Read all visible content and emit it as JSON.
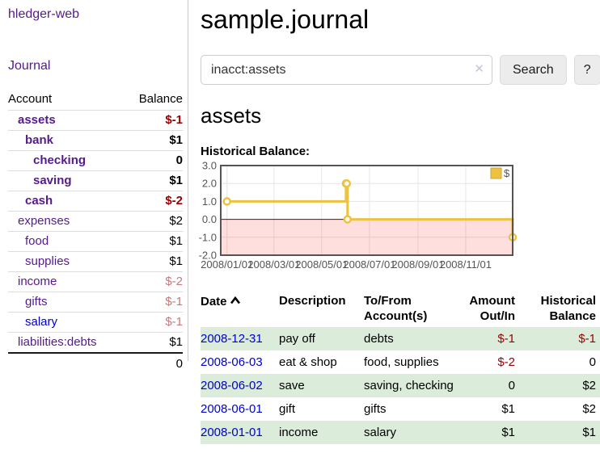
{
  "app": {
    "brand": "hledger-web",
    "nav": {
      "journal": "Journal"
    }
  },
  "sidebar": {
    "columns": {
      "account": "Account",
      "balance": "Balance"
    },
    "accounts": [
      {
        "name": "assets",
        "depth": 1,
        "bold": true,
        "balance": "$-1",
        "balance_style": "neg-strong"
      },
      {
        "name": "bank",
        "depth": 2,
        "bold": true,
        "balance": "$1",
        "balance_style": "plain"
      },
      {
        "name": "checking",
        "depth": 3,
        "bold": true,
        "balance": "0",
        "balance_style": "plain"
      },
      {
        "name": "saving",
        "depth": 3,
        "bold": true,
        "balance": "$1",
        "balance_style": "plain"
      },
      {
        "name": "cash",
        "depth": 2,
        "bold": true,
        "balance": "$-2",
        "balance_style": "neg-strong"
      },
      {
        "name": "expenses",
        "depth": 1,
        "bold": false,
        "balance": "$2",
        "balance_style": "plain"
      },
      {
        "name": "food",
        "depth": 2,
        "bold": false,
        "balance": "$1",
        "balance_style": "plain"
      },
      {
        "name": "supplies",
        "depth": 2,
        "bold": false,
        "balance": "$1",
        "balance_style": "plain"
      },
      {
        "name": "income",
        "depth": 1,
        "bold": false,
        "balance": "$-2",
        "balance_style": "neg-soft"
      },
      {
        "name": "gifts",
        "depth": 2,
        "bold": false,
        "balance": "$-1",
        "balance_style": "neg-soft"
      },
      {
        "name": "salary",
        "depth": 2,
        "bold": false,
        "balance": "$-1",
        "balance_style": "neg-soft",
        "link_style": "unvisited"
      },
      {
        "name": "liabilities:debts",
        "depth": 1,
        "bold": false,
        "balance": "$1",
        "balance_style": "plain",
        "last": true
      }
    ],
    "total": "0"
  },
  "main": {
    "title": "sample.journal",
    "search": {
      "value": "inacct:assets",
      "clear_icon": "✕",
      "submit_label": "Search",
      "help_label": "?"
    },
    "account_heading": "assets",
    "chart_title": "Historical Balance:"
  },
  "chart_data": {
    "type": "line",
    "step": true,
    "title": "Historical Balance",
    "series": [
      {
        "name": "$",
        "color": "#edc240",
        "points": [
          [
            "2008-01-01",
            1
          ],
          [
            "2008-06-01",
            2
          ],
          [
            "2008-06-02",
            2
          ],
          [
            "2008-06-03",
            0
          ],
          [
            "2008-12-31",
            -1
          ]
        ]
      }
    ],
    "x_ticks": [
      {
        "date": "2008-01-01",
        "label": "2008/01/01"
      },
      {
        "date": "2008-03-01",
        "label": "2008/03/01"
      },
      {
        "date": "2008-05-01",
        "label": "2008/05/01"
      },
      {
        "date": "2008-07-01",
        "label": "2008/07/01"
      },
      {
        "date": "2008-09-01",
        "label": "2008/09/01"
      },
      {
        "date": "2008-11-01",
        "label": "2008/11/01"
      }
    ],
    "y_ticks": [
      {
        "value": 3,
        "label": "3.0"
      },
      {
        "value": 2,
        "label": "2.0"
      },
      {
        "value": 1,
        "label": "1.0"
      },
      {
        "value": 0,
        "label": "0.0"
      },
      {
        "value": -1,
        "label": "-1.0"
      },
      {
        "value": -2,
        "label": "-2.0"
      }
    ],
    "ylim": [
      -2,
      3
    ],
    "x_domain_days": [
      -8,
      365
    ],
    "grid": true,
    "legend": {
      "label": "$",
      "position": "top-right"
    },
    "negative_region": {
      "from": 0,
      "to": -2,
      "fill": "rgba(255,0,0,0.13)",
      "zero_line_color": "#8b0000"
    },
    "colors": {
      "border": "#545454",
      "gridline": "#e6e6e6",
      "tick_text": "#545454",
      "legend_square_border": "#cda43a"
    }
  },
  "register": {
    "columns": [
      {
        "label": "Date",
        "sorted": "asc"
      },
      {
        "label": "Description"
      },
      {
        "label": "To/From Account(s)"
      },
      {
        "label": "Amount Out/In",
        "align": "right"
      },
      {
        "label": "Historical Balance",
        "align": "right"
      }
    ],
    "rows": [
      {
        "date": "2008-12-31",
        "description": "pay off",
        "accounts": "debts",
        "amount": "$-1",
        "amount_negative": true,
        "balance": "$-1",
        "balance_negative": true
      },
      {
        "date": "2008-06-03",
        "description": "eat & shop",
        "accounts": "food, supplies",
        "amount": "$-2",
        "amount_negative": true,
        "balance": "0",
        "balance_negative": false
      },
      {
        "date": "2008-06-02",
        "description": "save",
        "accounts": "saving, checking",
        "amount": "0",
        "amount_negative": false,
        "balance": "$2",
        "balance_negative": false
      },
      {
        "date": "2008-06-01",
        "description": "gift",
        "accounts": "gifts",
        "amount": "$1",
        "amount_negative": false,
        "balance": "$2",
        "balance_negative": false
      },
      {
        "date": "2008-01-01",
        "description": "income",
        "accounts": "salary",
        "amount": "$1",
        "amount_negative": false,
        "balance": "$1",
        "balance_negative": false
      }
    ]
  },
  "colors": {
    "link_purple": "#551a8b",
    "link_blue": "#0000cc",
    "negative_strong": "#990000",
    "negative_soft": "#c47b7b",
    "row_stripe_green": "#dbecda",
    "chart_gold": "#edc240"
  }
}
